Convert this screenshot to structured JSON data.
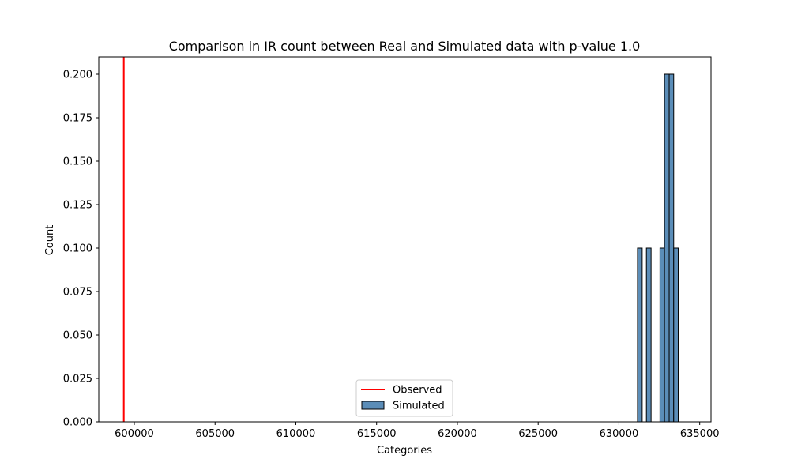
{
  "chart_data": {
    "type": "bar",
    "title": "Comparison in IR count between Real and Simulated data with p-value 1.0",
    "xlabel": "Categories",
    "ylabel": "Count",
    "xlim": [
      597800,
      635700
    ],
    "ylim": [
      0.0,
      0.21
    ],
    "xticks": [
      600000,
      605000,
      610000,
      615000,
      620000,
      625000,
      630000,
      635000
    ],
    "yticks": [
      0.0,
      0.025,
      0.05,
      0.075,
      0.1,
      0.125,
      0.15,
      0.175,
      0.2
    ],
    "xtick_labels": [
      "600000",
      "605000",
      "610000",
      "615000",
      "620000",
      "625000",
      "630000",
      "635000"
    ],
    "ytick_labels": [
      "0.000",
      "0.025",
      "0.050",
      "0.075",
      "0.100",
      "0.125",
      "0.150",
      "0.175",
      "0.200"
    ],
    "grid": false,
    "legend_placement": "lower-center",
    "series": [
      {
        "name": "Simulated",
        "kind": "histogram",
        "color": "#5b8db8",
        "edgecolor": "#000000",
        "bins": [
          {
            "start": 631150,
            "end": 631440,
            "value": 0.1
          },
          {
            "start": 631700,
            "end": 631990,
            "value": 0.1
          },
          {
            "start": 632540,
            "end": 632820,
            "value": 0.1
          },
          {
            "start": 632820,
            "end": 633110,
            "value": 0.2
          },
          {
            "start": 633110,
            "end": 633390,
            "value": 0.2
          },
          {
            "start": 633390,
            "end": 633670,
            "value": 0.1
          }
        ]
      },
      {
        "name": "Observed",
        "kind": "vline",
        "color": "#ff0000",
        "x": 599350
      }
    ]
  }
}
